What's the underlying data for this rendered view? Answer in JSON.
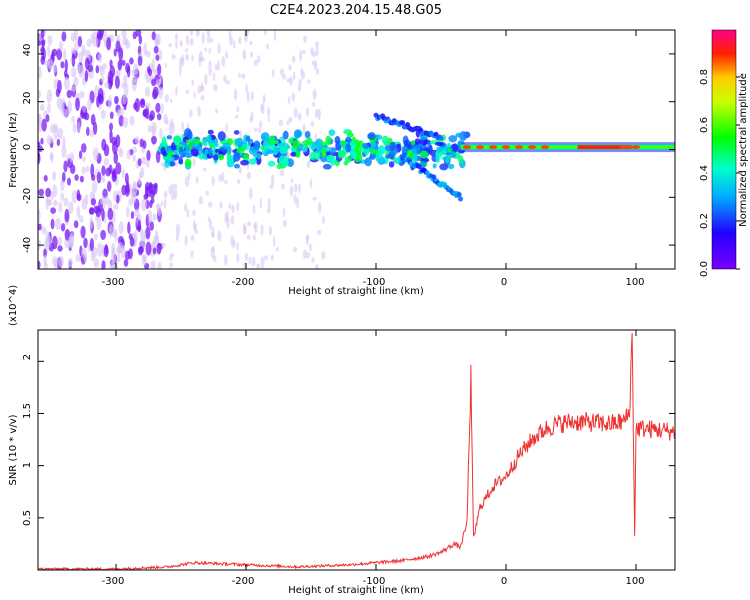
{
  "title": "C2E4.2023.204.15.48.G05",
  "colors": {
    "line": "#ee3333",
    "spectrum_low": "#7a1cf5",
    "spectrum_faint": "#d7c3f5",
    "axis": "#000000"
  },
  "chart_data": [
    {
      "type": "heatmap",
      "xlabel": "Height of straight line (km)",
      "ylabel": "Frequency (Hz)",
      "xlim": [
        -360,
        130
      ],
      "ylim": [
        -50,
        50
      ],
      "xticks": [
        -300,
        -200,
        -100,
        0,
        100
      ],
      "yticks": [
        -40,
        -20,
        0,
        20,
        40
      ],
      "colorbar": {
        "label": "Normalized spectral amplitude",
        "range": [
          0,
          1
        ],
        "ticks": [
          "0.0",
          "0.2",
          "0.4",
          "0.6",
          "0.8"
        ],
        "colormap": "rainbow (violet-blue-cyan-green-yellow-red-magenta)"
      },
      "features": [
        {
          "name": "broadband noise",
          "x": [
            -360,
            -265
          ],
          "y": [
            -50,
            50
          ],
          "amplitude": 0.1
        },
        {
          "name": "faint noise streaks",
          "x": [
            -265,
            -140
          ],
          "y": [
            -50,
            50
          ],
          "amplitude": 0.03
        },
        {
          "name": "central band",
          "x": [
            -265,
            -30
          ],
          "y": [
            -3,
            3
          ],
          "amplitude": 0.3
        },
        {
          "name": "upper branch",
          "x": [
            -100,
            -50
          ],
          "y": [
            5,
            14
          ],
          "amplitude": 0.15
        },
        {
          "name": "lower branch",
          "x": [
            -80,
            -35
          ],
          "y": [
            -3,
            -20
          ],
          "amplitude": 0.15
        },
        {
          "name": "carrier line",
          "x": [
            -35,
            130
          ],
          "y": [
            1,
            1
          ],
          "amplitude": 0.6
        },
        {
          "name": "carrier peak",
          "x": [
            55,
            95
          ],
          "y": [
            1,
            1
          ],
          "amplitude": 0.9
        }
      ]
    },
    {
      "type": "line",
      "xlabel": "Height of straight line (km)",
      "ylabel": "SNR (10 * v/v)",
      "y_multiplier": "(x10^4)",
      "xlim": [
        -360,
        130
      ],
      "ylim": [
        0,
        2.3
      ],
      "xticks": [
        -300,
        -200,
        -100,
        0,
        100
      ],
      "yticks": [
        0.5,
        1.0,
        1.5,
        2.0
      ],
      "series": [
        {
          "x": [
            -360,
            -300,
            -260,
            -240,
            -220,
            -200,
            -180,
            -160,
            -140,
            -120,
            -100,
            -80,
            -60,
            -50,
            -40,
            -35,
            -30,
            -27,
            -25,
            -20,
            -10,
            0,
            10,
            20,
            30,
            40,
            50,
            60,
            70,
            80,
            90,
            95,
            97,
            99,
            100,
            102,
            110,
            120,
            130
          ],
          "y": [
            0.01,
            0.01,
            0.03,
            0.07,
            0.06,
            0.05,
            0.04,
            0.03,
            0.04,
            0.05,
            0.07,
            0.09,
            0.13,
            0.17,
            0.25,
            0.22,
            0.45,
            1.85,
            0.3,
            0.6,
            0.8,
            0.9,
            1.1,
            1.25,
            1.35,
            1.4,
            1.42,
            1.42,
            1.41,
            1.4,
            1.42,
            1.5,
            2.25,
            0.35,
            1.35,
            1.36,
            1.35,
            1.34,
            1.32
          ]
        }
      ]
    }
  ]
}
